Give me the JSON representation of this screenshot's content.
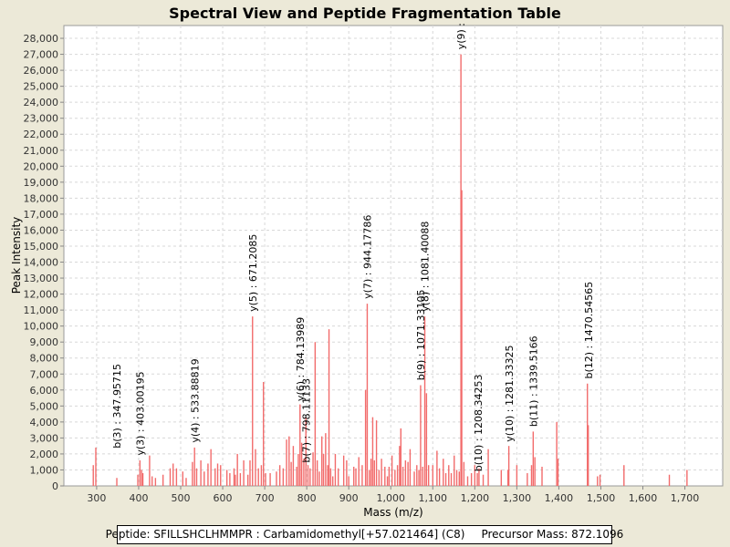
{
  "chart_data": {
    "type": "bar",
    "title": "Spectral View and Peptide Fragmentation Table",
    "xlabel": "Mass (m/z)",
    "ylabel": "Peak Intensity",
    "xlim": [
      222,
      1790
    ],
    "ylim": [
      0,
      28800
    ],
    "xticks": [
      300,
      400,
      500,
      600,
      700,
      800,
      900,
      1000,
      1100,
      1200,
      1300,
      1400,
      1500,
      1600,
      1700
    ],
    "xtick_labels": [
      "300",
      "400",
      "500",
      "600",
      "700",
      "800",
      "900",
      "1,000",
      "1,100",
      "1,200",
      "1,300",
      "1,400",
      "1,500",
      "1,600",
      "1,700"
    ],
    "yticks": [
      0,
      1000,
      2000,
      3000,
      4000,
      5000,
      6000,
      7000,
      8000,
      9000,
      10000,
      11000,
      12000,
      13000,
      14000,
      15000,
      16000,
      17000,
      18000,
      19000,
      20000,
      21000,
      22000,
      23000,
      24000,
      25000,
      26000,
      27000,
      28000
    ],
    "ytick_labels": [
      "0",
      "1,000",
      "2,000",
      "3,000",
      "4,000",
      "5,000",
      "6,000",
      "7,000",
      "8,000",
      "9,000",
      "10,000",
      "11,000",
      "12,000",
      "13,000",
      "14,000",
      "15,000",
      "16,000",
      "17,000",
      "18,000",
      "19,000",
      "20,000",
      "21,000",
      "22,000",
      "23,000",
      "24,000",
      "25,000",
      "26,000",
      "27,000",
      "28,000"
    ],
    "grid": true,
    "bar_color": "#f26b6b",
    "peaks": [
      [
        292,
        1300
      ],
      [
        298,
        2400
      ],
      [
        348,
        500
      ],
      [
        398,
        700
      ],
      [
        403,
        1600
      ],
      [
        407,
        1000
      ],
      [
        410,
        800
      ],
      [
        426,
        1900
      ],
      [
        432,
        600
      ],
      [
        440,
        500
      ],
      [
        458,
        700
      ],
      [
        475,
        1100
      ],
      [
        482,
        1400
      ],
      [
        490,
        1100
      ],
      [
        505,
        900
      ],
      [
        513,
        500
      ],
      [
        528,
        1500
      ],
      [
        533,
        2400
      ],
      [
        538,
        1100
      ],
      [
        548,
        1600
      ],
      [
        556,
        900
      ],
      [
        565,
        1400
      ],
      [
        572,
        2300
      ],
      [
        582,
        1100
      ],
      [
        588,
        1400
      ],
      [
        595,
        1300
      ],
      [
        610,
        1000
      ],
      [
        617,
        800
      ],
      [
        627,
        1100
      ],
      [
        630,
        700
      ],
      [
        635,
        2000
      ],
      [
        642,
        800
      ],
      [
        650,
        1600
      ],
      [
        660,
        700
      ],
      [
        665,
        1600
      ],
      [
        671,
        10600
      ],
      [
        678,
        2300
      ],
      [
        685,
        1100
      ],
      [
        692,
        1300
      ],
      [
        697,
        6500
      ],
      [
        702,
        800
      ],
      [
        713,
        800
      ],
      [
        728,
        900
      ],
      [
        736,
        1300
      ],
      [
        744,
        1100
      ],
      [
        752,
        2900
      ],
      [
        758,
        3100
      ],
      [
        763,
        1500
      ],
      [
        768,
        2500
      ],
      [
        776,
        1200
      ],
      [
        780,
        2000
      ],
      [
        784,
        5100
      ],
      [
        788,
        2700
      ],
      [
        793,
        1700
      ],
      [
        798,
        4300
      ],
      [
        803,
        1300
      ],
      [
        808,
        1100
      ],
      [
        815,
        2100
      ],
      [
        820,
        9000
      ],
      [
        825,
        1600
      ],
      [
        830,
        900
      ],
      [
        836,
        3100
      ],
      [
        840,
        2000
      ],
      [
        845,
        3300
      ],
      [
        850,
        1300
      ],
      [
        853,
        9800
      ],
      [
        857,
        1100
      ],
      [
        862,
        600
      ],
      [
        868,
        2000
      ],
      [
        875,
        1100
      ],
      [
        888,
        1900
      ],
      [
        895,
        1600
      ],
      [
        900,
        600
      ],
      [
        912,
        1200
      ],
      [
        917,
        1100
      ],
      [
        924,
        1800
      ],
      [
        932,
        1300
      ],
      [
        940,
        6000
      ],
      [
        944,
        11400
      ],
      [
        949,
        1000
      ],
      [
        953,
        1700
      ],
      [
        957,
        4300
      ],
      [
        961,
        1600
      ],
      [
        966,
        4100
      ],
      [
        972,
        1000
      ],
      [
        978,
        1700
      ],
      [
        986,
        1200
      ],
      [
        992,
        600
      ],
      [
        996,
        1200
      ],
      [
        1003,
        1900
      ],
      [
        1010,
        1000
      ],
      [
        1016,
        1300
      ],
      [
        1021,
        2500
      ],
      [
        1024,
        3600
      ],
      [
        1029,
        1200
      ],
      [
        1035,
        1600
      ],
      [
        1041,
        1500
      ],
      [
        1046,
        2300
      ],
      [
        1056,
        900
      ],
      [
        1062,
        1300
      ],
      [
        1067,
        1000
      ],
      [
        1071,
        6300
      ],
      [
        1076,
        1200
      ],
      [
        1081,
        10600
      ],
      [
        1085,
        5800
      ],
      [
        1090,
        1300
      ],
      [
        1100,
        1300
      ],
      [
        1110,
        2200
      ],
      [
        1116,
        1100
      ],
      [
        1125,
        1700
      ],
      [
        1131,
        800
      ],
      [
        1138,
        1300
      ],
      [
        1144,
        800
      ],
      [
        1151,
        1900
      ],
      [
        1157,
        1000
      ],
      [
        1163,
        900
      ],
      [
        1167,
        27000
      ],
      [
        1169,
        18500
      ],
      [
        1174,
        1500
      ],
      [
        1183,
        600
      ],
      [
        1192,
        800
      ],
      [
        1200,
        1300
      ],
      [
        1206,
        800
      ],
      [
        1210,
        1100
      ],
      [
        1220,
        700
      ],
      [
        1232,
        2300
      ],
      [
        1263,
        1000
      ],
      [
        1279,
        1000
      ],
      [
        1281,
        2500
      ],
      [
        1300,
        1300
      ],
      [
        1325,
        800
      ],
      [
        1335,
        1300
      ],
      [
        1339,
        3400
      ],
      [
        1343,
        1800
      ],
      [
        1360,
        1200
      ],
      [
        1395,
        4000
      ],
      [
        1398,
        1700
      ],
      [
        1468,
        6400
      ],
      [
        1470,
        3800
      ],
      [
        1492,
        600
      ],
      [
        1498,
        700
      ],
      [
        1555,
        1300
      ],
      [
        1663,
        700
      ],
      [
        1705,
        1000
      ]
    ],
    "annotations": [
      {
        "mz": 347.95715,
        "label": "b(3) : 347.95715",
        "text_y": 2350
      },
      {
        "mz": 403.00195,
        "label": "y(3) : 403.00195",
        "text_y": 1900
      },
      {
        "mz": 533.88819,
        "label": "y(4) : 533.88819",
        "text_y": 2700
      },
      {
        "mz": 671.2085,
        "label": "y(5) : 671.2085",
        "text_y": 10900
      },
      {
        "mz": 784.13989,
        "label": "y(6) : 784.13989",
        "text_y": 5300
      },
      {
        "mz": 798.11133,
        "label": "b(7) : 798.11133",
        "text_y": 1450
      },
      {
        "mz": 944.17786,
        "label": "y(7) : 944.17786",
        "text_y": 11700
      },
      {
        "mz": 1071.33105,
        "label": "b(9) : 1071.33105",
        "text_y": 6600
      },
      {
        "mz": 1081.40088,
        "label": "y(8) : 1081.40088",
        "text_y": 10900
      },
      {
        "mz": 1167.0,
        "label": "y(9) :",
        "text_y": 27300
      },
      {
        "mz": 1208.34253,
        "label": "b(10) : 1208.34253",
        "text_y": 900
      },
      {
        "mz": 1281.33325,
        "label": "y(10) : 1281.33325",
        "text_y": 2750
      },
      {
        "mz": 1339.5166,
        "label": "b(11) : 1339.5166",
        "text_y": 3700
      },
      {
        "mz": 1470.54565,
        "label": "b(12) : 1470.54565",
        "text_y": 6700
      }
    ]
  },
  "footer": {
    "peptide": "Peptide: SFILLSHCLHMMPR : Carbamidomethyl[+57.021464] (C8)",
    "precursor": "Precursor Mass: 872.1096"
  }
}
